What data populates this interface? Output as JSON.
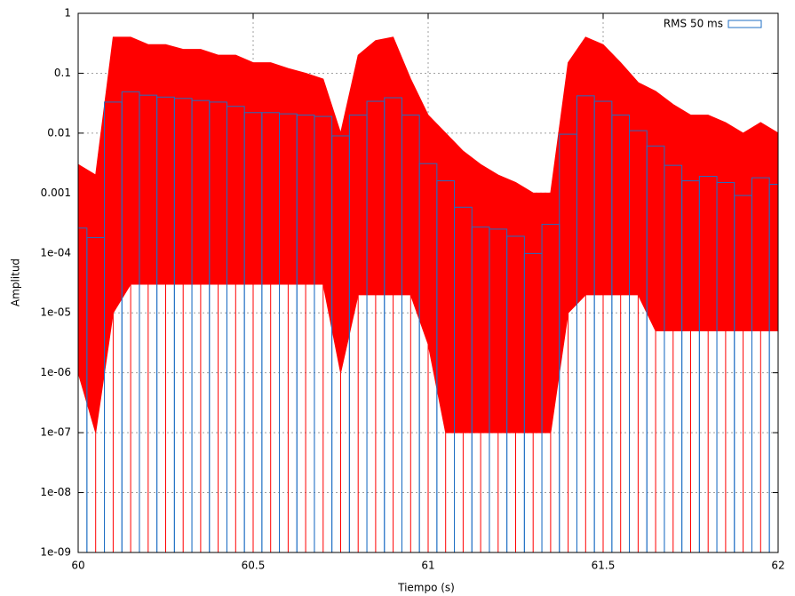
{
  "chart_data": {
    "type": "log-waveform",
    "xlabel": "Tiempo (s)",
    "ylabel": "Amplitud",
    "log_y": true,
    "grid": true,
    "legend": "top-right",
    "xlim": [
      60,
      62
    ],
    "ylim": [
      1e-09,
      1
    ],
    "xticks": [
      60,
      60.5,
      61,
      61.5,
      62
    ],
    "yticks": [
      {
        "value": 1,
        "label": "1"
      },
      {
        "value": 0.1,
        "label": "0.1"
      },
      {
        "value": 0.01,
        "label": "0.01"
      },
      {
        "value": 0.001,
        "label": "0.001"
      },
      {
        "value": 0.0001,
        "label": "1e-04"
      },
      {
        "value": 1e-05,
        "label": "1e-05"
      },
      {
        "value": 1e-06,
        "label": "1e-06"
      },
      {
        "value": 1e-07,
        "label": "1e-07"
      },
      {
        "value": 1e-08,
        "label": "1e-08"
      },
      {
        "value": 1e-09,
        "label": "1e-09"
      }
    ],
    "box_width": 0.05,
    "x": [
      60,
      60.05,
      60.1,
      60.15,
      60.2,
      60.25,
      60.3,
      60.35,
      60.4,
      60.45,
      60.5,
      60.55,
      60.6,
      60.65,
      60.7,
      60.75,
      60.8,
      60.85,
      60.9,
      60.95,
      61,
      61.05,
      61.1,
      61.15,
      61.2,
      61.25,
      61.3,
      61.35,
      61.4,
      61.45,
      61.5,
      61.55,
      61.6,
      61.65,
      61.7,
      61.75,
      61.8,
      61.85,
      61.9,
      61.95,
      62
    ],
    "series": [
      {
        "style": "band",
        "color": "#ff0000",
        "values": [
          0.003,
          0.002,
          0.4,
          0.4,
          0.3,
          0.3,
          0.25,
          0.25,
          0.2,
          0.2,
          0.15,
          0.15,
          0.12,
          0.1,
          0.08,
          0.01,
          0.2,
          0.35,
          0.4,
          0.08,
          0.02,
          0.01,
          0.005,
          0.003,
          0.002,
          0.0015,
          0.001,
          0.001,
          0.15,
          0.4,
          0.3,
          0.15,
          0.07,
          0.05,
          0.03,
          0.02,
          0.02,
          0.015,
          0.01,
          0.015,
          0.01
        ],
        "lows": [
          1e-06,
          1e-07,
          1e-05,
          3e-05,
          3e-05,
          3e-05,
          3e-05,
          3e-05,
          3e-05,
          3e-05,
          3e-05,
          3e-05,
          3e-05,
          3e-05,
          3e-05,
          1e-06,
          2e-05,
          2e-05,
          2e-05,
          2e-05,
          3e-06,
          1e-07,
          1e-07,
          1e-07,
          1e-07,
          1e-07,
          1e-07,
          1e-07,
          1e-05,
          2e-05,
          2e-05,
          2e-05,
          2e-05,
          5e-06,
          5e-06,
          5e-06,
          5e-06,
          5e-06,
          5e-06,
          5e-06,
          5e-06
        ]
      },
      {
        "name": "RMS 50 ms",
        "style": "boxes",
        "color": "#1f6fc4",
        "values": [
          0.00026,
          0.00018,
          0.033,
          0.049,
          0.043,
          0.04,
          0.038,
          0.035,
          0.033,
          0.028,
          0.022,
          0.022,
          0.021,
          0.02,
          0.019,
          0.009,
          0.02,
          0.034,
          0.039,
          0.02,
          0.0031,
          0.0016,
          0.00058,
          0.00027,
          0.00025,
          0.00019,
          9.8e-05,
          0.0003,
          0.0096,
          0.042,
          0.034,
          0.02,
          0.011,
          0.0061,
          0.0029,
          0.0016,
          0.0019,
          0.0015,
          0.00091,
          0.0018,
          0.0014
        ]
      }
    ]
  }
}
